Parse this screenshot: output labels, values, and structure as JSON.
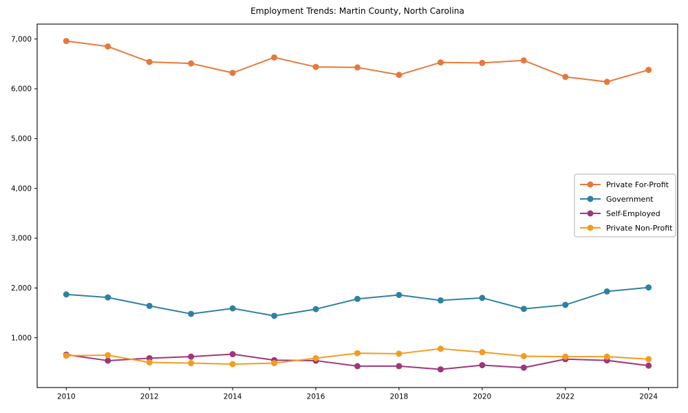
{
  "title": "Employment Trends: Martin County, North Carolina",
  "chart_data": {
    "type": "line",
    "title": "Employment Trends: Martin County, North Carolina",
    "xlabel": "",
    "ylabel": "",
    "x": [
      2010,
      2011,
      2012,
      2013,
      2014,
      2015,
      2016,
      2017,
      2018,
      2019,
      2020,
      2021,
      2022,
      2023,
      2024
    ],
    "series": [
      {
        "name": "Private For-Profit",
        "color": "#E5793C",
        "values": [
          6960,
          6850,
          6540,
          6510,
          6320,
          6630,
          6440,
          6430,
          6280,
          6530,
          6520,
          6570,
          6240,
          6140,
          6380
        ]
      },
      {
        "name": "Government",
        "color": "#2F81A2",
        "values": [
          1870,
          1810,
          1640,
          1480,
          1590,
          1440,
          1575,
          1780,
          1860,
          1750,
          1800,
          1580,
          1660,
          1930,
          2010
        ]
      },
      {
        "name": "Self-Employed",
        "color": "#A0367A",
        "values": [
          660,
          540,
          590,
          620,
          670,
          550,
          540,
          430,
          430,
          365,
          450,
          400,
          570,
          545,
          440
        ]
      },
      {
        "name": "Private Non-Profit",
        "color": "#F39C1E",
        "values": [
          640,
          650,
          505,
          490,
          470,
          490,
          590,
          690,
          680,
          780,
          710,
          630,
          620,
          620,
          570
        ]
      }
    ],
    "xticks": [
      2010,
      2012,
      2014,
      2016,
      2018,
      2020,
      2022,
      2024
    ],
    "xtick_labels": [
      "2010",
      "2012",
      "2014",
      "2016",
      "2018",
      "2020",
      "2022",
      "2024"
    ],
    "yticks": [
      1000,
      2000,
      3000,
      4000,
      5000,
      6000,
      7000
    ],
    "ytick_labels": [
      "1,000",
      "2,000",
      "3,000",
      "4,000",
      "5,000",
      "6,000",
      "7,000"
    ],
    "xlim": [
      2009.3,
      2024.7
    ],
    "ylim": [
      0,
      7300
    ],
    "grid": false,
    "legend_position": "center-right",
    "axis_color": "#000000",
    "tick_label_color": "#000000",
    "legend_border_color": "#b0b0b0",
    "background_color": "#ffffff",
    "line_width": 2,
    "marker": "circle",
    "marker_radius": 4.5
  }
}
